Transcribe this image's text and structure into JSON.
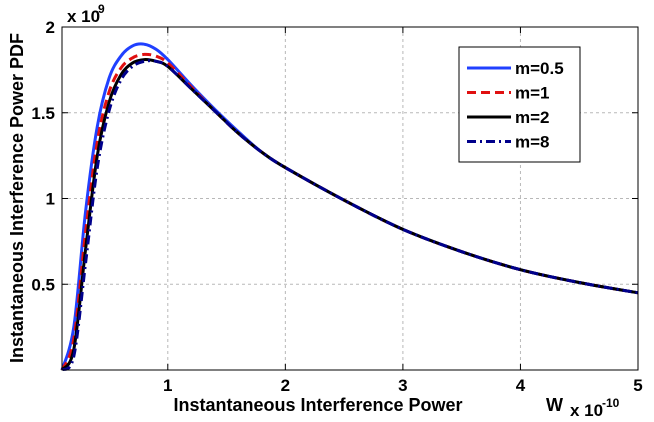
{
  "chart_data": {
    "type": "line",
    "xlabel": "Instantaneous Interference Power",
    "xunit": "W",
    "x_multiplier_base": "x 10",
    "x_multiplier_exp": "-10",
    "ylabel": "Instantaneous Interference Power PDF",
    "y_multiplier_base": "x 10",
    "y_multiplier_exp": "9",
    "xlim": [
      0.1,
      5
    ],
    "ylim": [
      0,
      2
    ],
    "xticks": [
      1,
      2,
      3,
      4,
      5
    ],
    "xtick_labels": [
      "1",
      "2",
      "3",
      "4",
      "5"
    ],
    "yticks": [
      0.5,
      1,
      1.5,
      2
    ],
    "ytick_labels": [
      "0.5",
      "1",
      "1.5",
      "2"
    ],
    "grid": true,
    "legend_position": "top-right",
    "x": [
      0.1,
      0.2,
      0.3,
      0.4,
      0.5,
      0.6,
      0.7,
      0.8,
      0.9,
      1.0,
      1.2,
      1.4,
      1.6,
      1.8,
      2.0,
      2.5,
      3.0,
      3.5,
      4.0,
      4.5,
      5.0
    ],
    "series": [
      {
        "name": "m=0.5",
        "color": "#2040ff",
        "dash": "solid",
        "values": [
          0.0,
          0.25,
          0.92,
          1.42,
          1.7,
          1.83,
          1.89,
          1.9,
          1.87,
          1.81,
          1.66,
          1.52,
          1.39,
          1.27,
          1.18,
          0.99,
          0.82,
          0.69,
          0.585,
          0.51,
          0.45
        ]
      },
      {
        "name": "m=1",
        "color": "#e01010",
        "dash": "dashed",
        "values": [
          0.0,
          0.18,
          0.8,
          1.33,
          1.62,
          1.76,
          1.82,
          1.84,
          1.83,
          1.79,
          1.65,
          1.51,
          1.38,
          1.27,
          1.18,
          0.99,
          0.82,
          0.69,
          0.585,
          0.51,
          0.45
        ]
      },
      {
        "name": "m=2",
        "color": "#000000",
        "dash": "solid",
        "values": [
          0.0,
          0.12,
          0.7,
          1.25,
          1.56,
          1.72,
          1.79,
          1.81,
          1.8,
          1.77,
          1.64,
          1.51,
          1.38,
          1.27,
          1.18,
          0.99,
          0.82,
          0.69,
          0.585,
          0.51,
          0.45
        ]
      },
      {
        "name": "m=8",
        "color": "#00008b",
        "dash": "dashdot",
        "values": [
          0.0,
          0.08,
          0.62,
          1.18,
          1.51,
          1.69,
          1.77,
          1.8,
          1.8,
          1.77,
          1.64,
          1.51,
          1.38,
          1.27,
          1.18,
          0.99,
          0.82,
          0.69,
          0.585,
          0.51,
          0.45
        ]
      }
    ]
  }
}
